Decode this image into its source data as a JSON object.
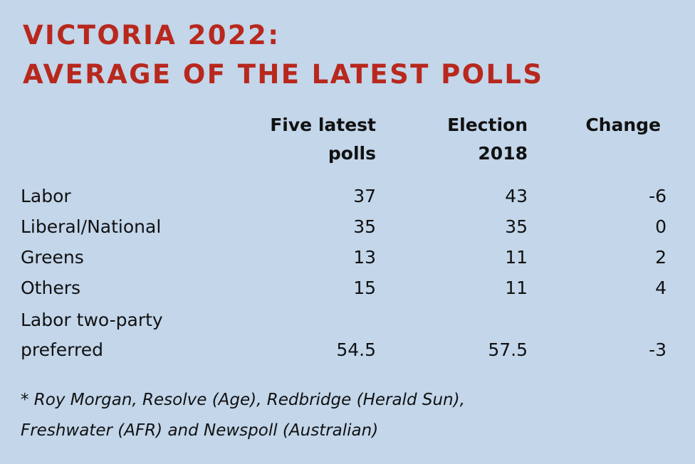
{
  "title": {
    "line1": "VICTORIA 2022:",
    "line2": "AVERAGE OF THE LATEST POLLS"
  },
  "columns": {
    "five_latest_line1": "Five latest",
    "five_latest_line2": "polls",
    "election_line1": "Election",
    "election_line2": "2018",
    "change": "Change"
  },
  "rows": [
    {
      "label": "Labor",
      "five_latest": "37",
      "election_2018": "43",
      "change": "-6"
    },
    {
      "label": "Liberal/National",
      "five_latest": "35",
      "election_2018": "35",
      "change": "0"
    },
    {
      "label": "Greens",
      "five_latest": "13",
      "election_2018": "11",
      "change": "2"
    },
    {
      "label": "Others",
      "five_latest": "15",
      "election_2018": "11",
      "change": "4"
    },
    {
      "label_line1": "Labor two-party",
      "label_line2": "preferred",
      "five_latest": "54.5",
      "election_2018": "57.5",
      "change": "-3"
    }
  ],
  "footnote": {
    "line1": "* Roy Morgan, Resolve (Age), Redbridge (Herald Sun),",
    "line2": "Freshwater (AFR) and Newspoll (Australian)"
  },
  "colors": {
    "background": "#c3d6ea",
    "title": "#b8281d",
    "text": "#111111"
  }
}
